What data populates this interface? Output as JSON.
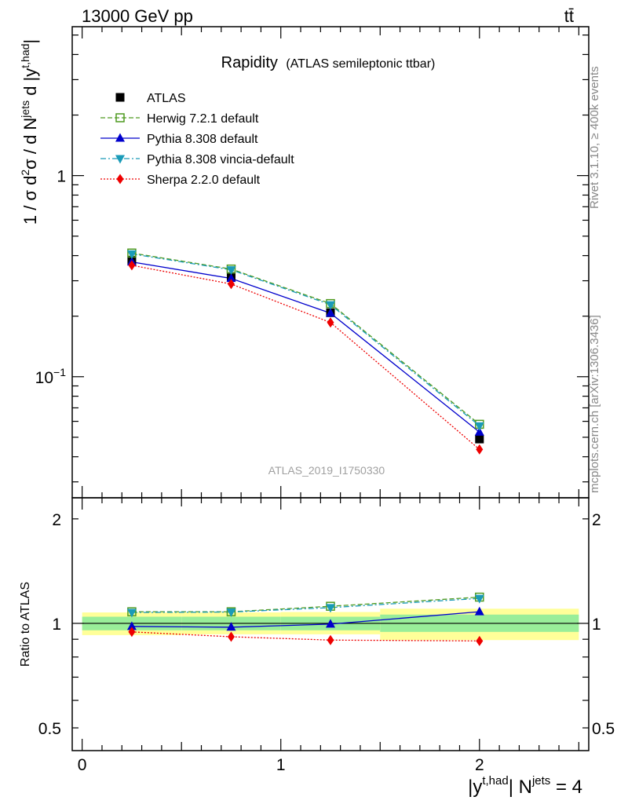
{
  "header": {
    "energy_label": "13000 GeV pp",
    "process_label": "tt̄"
  },
  "side_text": {
    "rivet": "Rivet 3.1.10, ≥ 400k events",
    "mcplots": "mcplots.cern.ch [arXiv:1306.3436]"
  },
  "chart_data": [
    {
      "type": "line",
      "title": "Rapidity",
      "subtitle": "(ATLAS semileptonic ttbar)",
      "ylabel_parts": {
        "a": "1 / σ d",
        "a_sup": "2",
        "b": "σ / d N",
        "b_sup": "jets",
        "c": " d |y",
        "c_sup": "t,had",
        "d": "|"
      },
      "yscale": "log",
      "ylim": [
        0.025,
        5.5
      ],
      "xlim": [
        -0.05,
        2.55
      ],
      "x": [
        0.25,
        0.75,
        1.25,
        2.0
      ],
      "bin_edges": [
        0,
        0.5,
        1.0,
        1.5,
        2.5
      ],
      "yticks_major": [
        {
          "value": 1,
          "label": "1"
        },
        {
          "value": 0.1,
          "label": "10",
          "sup": "−1"
        }
      ],
      "watermark": "ATLAS_2019_I1750330",
      "legend_position": "top-left",
      "series": [
        {
          "name": "ATLAS",
          "color": "#000000",
          "marker": "square",
          "line": "none",
          "values": [
            0.38,
            0.315,
            0.208,
            0.049
          ]
        },
        {
          "name": "Herwig 7.2.1 default",
          "color": "#4f9a20",
          "marker": "open-square",
          "line": "dashed",
          "values": [
            0.412,
            0.343,
            0.231,
            0.058
          ]
        },
        {
          "name": "Pythia 8.308 default",
          "color": "#0000cc",
          "marker": "triangle-up",
          "line": "solid",
          "values": [
            0.372,
            0.308,
            0.207,
            0.053
          ]
        },
        {
          "name": "Pythia 8.308 vincia-default",
          "color": "#1a9bb8",
          "marker": "triangle-down",
          "line": "dashdot",
          "values": [
            0.408,
            0.34,
            0.228,
            0.057
          ]
        },
        {
          "name": "Sherpa 2.2.0 default",
          "color": "#ee0000",
          "marker": "diamond",
          "line": "dotted",
          "values": [
            0.358,
            0.289,
            0.186,
            0.0435
          ]
        }
      ]
    },
    {
      "type": "line",
      "title": "",
      "ylabel": "Ratio to ATLAS",
      "xlabel_parts": {
        "a": "|y",
        "a_sup": "t,had",
        "b": "| N",
        "b_sup": "jets",
        "c": " = 4"
      },
      "yscale": "log",
      "ylim": [
        0.43,
        2.3
      ],
      "xlim": [
        -0.05,
        2.55
      ],
      "xticks": [
        {
          "value": 0,
          "label": "0"
        },
        {
          "value": 1,
          "label": "1"
        },
        {
          "value": 2,
          "label": "2"
        }
      ],
      "yticks_major": [
        {
          "value": 0.5,
          "label": "0.5"
        },
        {
          "value": 1,
          "label": "1"
        },
        {
          "value": 2,
          "label": "2"
        }
      ],
      "bands": {
        "bin_edges": [
          0,
          0.5,
          1.0,
          1.5,
          2.5
        ],
        "inner_green": [
          [
            0.955,
            1.045
          ],
          [
            0.955,
            1.045
          ],
          [
            0.955,
            1.045
          ],
          [
            0.945,
            1.06
          ]
        ],
        "outer_yellow": [
          [
            0.925,
            1.075
          ],
          [
            0.93,
            1.075
          ],
          [
            0.93,
            1.078
          ],
          [
            0.895,
            1.102
          ]
        ],
        "inner_color": "#99ee99",
        "outer_color": "#ffff99"
      },
      "series": [
        {
          "name": "Herwig 7.2.1 default",
          "color": "#4f9a20",
          "marker": "open-square",
          "line": "dashed",
          "values": [
            1.08,
            1.08,
            1.12,
            1.19
          ]
        },
        {
          "name": "Pythia 8.308 default",
          "color": "#0000cc",
          "marker": "triangle-up",
          "line": "solid",
          "values": [
            0.98,
            0.975,
            0.995,
            1.08
          ]
        },
        {
          "name": "Pythia 8.308 vincia-default",
          "color": "#1a9bb8",
          "marker": "triangle-down",
          "line": "dashdot",
          "values": [
            1.075,
            1.078,
            1.11,
            1.18
          ]
        },
        {
          "name": "Sherpa 2.2.0 default",
          "color": "#ee0000",
          "marker": "diamond",
          "line": "dotted",
          "values": [
            0.945,
            0.915,
            0.895,
            0.89
          ]
        }
      ]
    }
  ]
}
